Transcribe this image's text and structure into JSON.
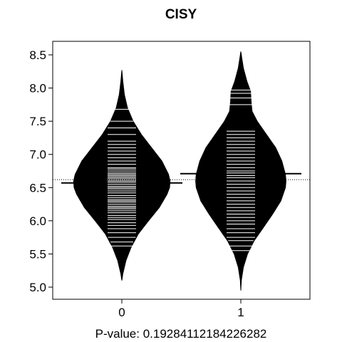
{
  "chart_data": {
    "type": "beanplot",
    "title": "CISY",
    "xlabel": "P-value: 0.19284112184226282",
    "ylabel": "",
    "categories": [
      "0",
      "1"
    ],
    "ylim": [
      4.8,
      8.65
    ],
    "yticks": [
      5.0,
      5.5,
      6.0,
      6.5,
      7.0,
      7.5,
      8.0,
      8.5
    ],
    "ytick_labels": [
      "5.0",
      "5.5",
      "6.0",
      "6.5",
      "7.0",
      "7.5",
      "8.0",
      "8.5"
    ],
    "overall_mean_line": 6.62,
    "grid": false,
    "series": [
      {
        "group": "0",
        "mean": 6.57,
        "range": [
          5.1,
          8.27
        ],
        "density": [
          [
            5.1,
            0.0
          ],
          [
            5.2,
            0.02
          ],
          [
            5.4,
            0.08
          ],
          [
            5.6,
            0.18
          ],
          [
            5.8,
            0.32
          ],
          [
            6.0,
            0.52
          ],
          [
            6.2,
            0.73
          ],
          [
            6.4,
            0.88
          ],
          [
            6.5,
            0.93
          ],
          [
            6.6,
            0.94
          ],
          [
            6.7,
            0.91
          ],
          [
            6.9,
            0.78
          ],
          [
            7.1,
            0.58
          ],
          [
            7.3,
            0.38
          ],
          [
            7.5,
            0.22
          ],
          [
            7.7,
            0.11
          ],
          [
            7.9,
            0.05
          ],
          [
            8.1,
            0.02
          ],
          [
            8.27,
            0.0
          ]
        ],
        "observations": [
          5.62,
          5.68,
          5.75,
          5.82,
          5.88,
          5.93,
          5.97,
          6.02,
          6.05,
          6.08,
          6.12,
          6.15,
          6.18,
          6.2,
          6.22,
          6.25,
          6.28,
          6.3,
          6.32,
          6.35,
          6.38,
          6.42,
          6.45,
          6.48,
          6.5,
          6.52,
          6.55,
          6.58,
          6.6,
          6.62,
          6.64,
          6.66,
          6.68,
          6.7,
          6.72,
          6.75,
          6.78,
          6.8,
          6.85,
          6.9,
          6.95,
          7.0,
          7.05,
          7.1,
          7.15,
          7.2,
          7.3,
          7.4,
          7.5,
          7.68
        ]
      },
      {
        "group": "1",
        "mean": 6.71,
        "range": [
          4.95,
          8.55
        ],
        "density": [
          [
            4.95,
            0.0
          ],
          [
            5.1,
            0.01
          ],
          [
            5.3,
            0.05
          ],
          [
            5.5,
            0.13
          ],
          [
            5.7,
            0.26
          ],
          [
            5.9,
            0.44
          ],
          [
            6.1,
            0.62
          ],
          [
            6.3,
            0.78
          ],
          [
            6.5,
            0.87
          ],
          [
            6.6,
            0.88
          ],
          [
            6.7,
            0.87
          ],
          [
            6.9,
            0.8
          ],
          [
            7.1,
            0.68
          ],
          [
            7.3,
            0.5
          ],
          [
            7.5,
            0.32
          ],
          [
            7.65,
            0.22
          ],
          [
            7.8,
            0.2
          ],
          [
            7.95,
            0.19
          ],
          [
            8.1,
            0.12
          ],
          [
            8.3,
            0.05
          ],
          [
            8.45,
            0.02
          ],
          [
            8.55,
            0.0
          ]
        ],
        "observations": [
          5.55,
          5.62,
          5.7,
          5.75,
          5.82,
          5.88,
          5.95,
          6.0,
          6.05,
          6.1,
          6.15,
          6.2,
          6.25,
          6.3,
          6.35,
          6.4,
          6.45,
          6.5,
          6.55,
          6.6,
          6.65,
          6.68,
          6.72,
          6.75,
          6.8,
          6.85,
          6.9,
          6.95,
          7.0,
          7.05,
          7.1,
          7.15,
          7.2,
          7.25,
          7.3,
          7.35,
          7.75,
          7.85,
          7.92,
          7.97
        ]
      }
    ]
  }
}
